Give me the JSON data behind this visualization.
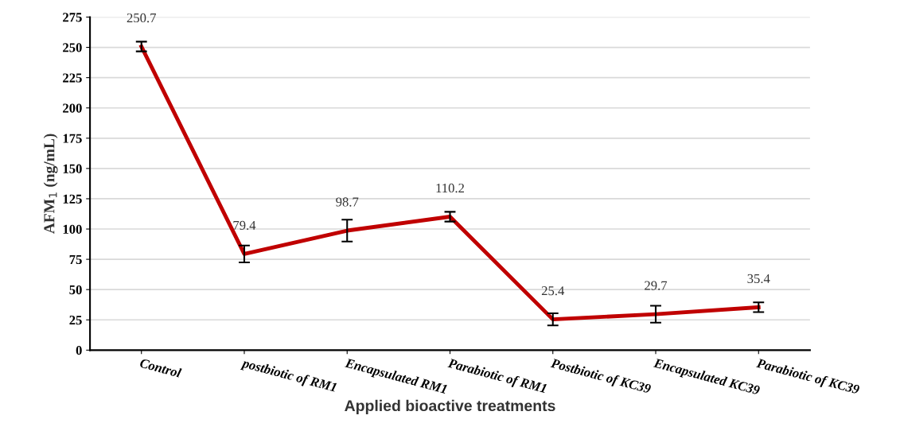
{
  "chart_data": {
    "type": "line",
    "xlabel": "Applied bioactive treatments",
    "ylabel": "AFM$_{1}$ (ng/mL)",
    "categories": [
      "Control",
      "postbiotic of RM1",
      "Encapsulated RM1",
      "Parabiotic of RM1",
      "Postbiotic of KC39",
      "Encapsulated KC39",
      "Parabiotic of KC39"
    ],
    "series": [
      {
        "color": "#c00000",
        "values": [
          250.7,
          79.4,
          98.7,
          110.2,
          25.4,
          29.7,
          35.4
        ],
        "errors": [
          4,
          7,
          9,
          4,
          5,
          7,
          4
        ]
      }
    ],
    "ylim": [
      0,
      275
    ],
    "yticks": [
      0,
      25,
      50,
      75,
      100,
      125,
      150,
      175,
      200,
      225,
      250,
      275
    ],
    "grid": "y",
    "data_labels": true,
    "marker": "none",
    "line_style": "solid"
  }
}
